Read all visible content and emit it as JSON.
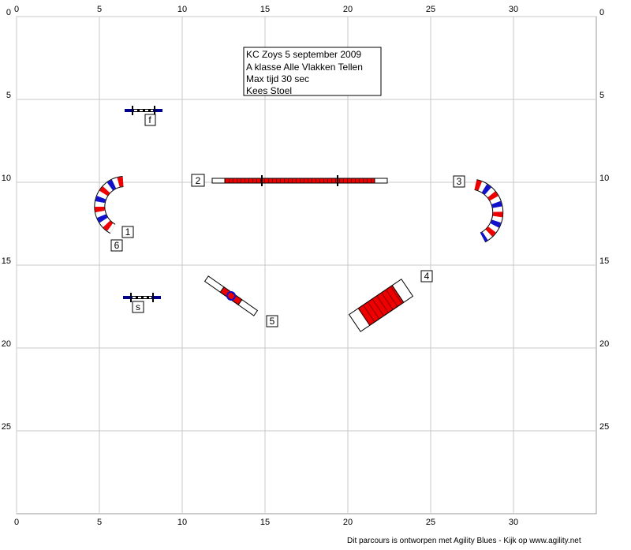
{
  "axes": {
    "x_ticks": [
      0,
      5,
      10,
      15,
      20,
      25,
      30
    ],
    "y_ticks": [
      0,
      5,
      10,
      15,
      20,
      25
    ]
  },
  "info": {
    "lines": [
      "KC Zoys 5 september 2009",
      "A klasse Alle Vlakken Tellen",
      "Max tijd 30 sec",
      "Kees Stoel"
    ]
  },
  "obstacles": {
    "labels": [
      "1",
      "2",
      "3",
      "4",
      "5",
      "6",
      "f",
      "s"
    ]
  },
  "footer": "Dit parcours is ontworpen met Agility Blues - Kijk op www.agility.net"
}
